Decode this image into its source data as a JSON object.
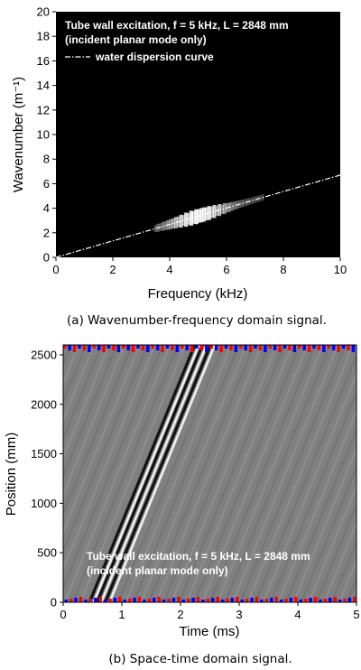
{
  "chart_data": [
    {
      "type": "heatmap",
      "caption": "(a) Wavenumber-frequency domain signal.",
      "xlabel": "Frequency (kHz)",
      "ylabel": "Wavenumber (m⁻¹)",
      "xlim": [
        0,
        10
      ],
      "ylim": [
        0,
        20
      ],
      "xticks": [
        0,
        2,
        4,
        6,
        8,
        10
      ],
      "yticks": [
        0,
        2,
        4,
        6,
        8,
        10,
        12,
        14,
        16,
        18,
        20
      ],
      "annotations": [
        "Tube wall excitation, f = 5 kHz, L = 2848 mm",
        "(incident planar mode only)"
      ],
      "legend": {
        "entry": "water dispersion curve",
        "placement": "top-left"
      },
      "series": [
        {
          "name": "water dispersion curve",
          "x": [
            0,
            10
          ],
          "y": [
            0,
            6.7
          ]
        }
      ],
      "energy_band": {
        "freq_range": [
          3.5,
          7.3
        ],
        "peak_freq": 5.0
      },
      "background_color": "#000000",
      "signal_color": "#ffffff"
    },
    {
      "type": "heatmap",
      "caption": "(b) Space-time domain signal.",
      "xlabel": "Time (ms)",
      "ylabel": "Position (mm)",
      "xlim": [
        0,
        5
      ],
      "ylim": [
        0,
        2600
      ],
      "xticks": [
        0,
        1,
        2,
        3,
        4,
        5
      ],
      "yticks": [
        0,
        500,
        1000,
        1500,
        2000,
        2500
      ],
      "annotations": [
        "Tube wall excitation, f = 5 kHz, L = 2848 mm",
        "(incident planar mode only)"
      ],
      "wave_fronts": {
        "start_times": [
          0.45,
          0.58,
          0.72
        ],
        "speed_mm_per_ms": 1450
      },
      "background_color": "#808080",
      "highlight_colors": [
        "#ff0000",
        "#0000ff"
      ]
    }
  ]
}
